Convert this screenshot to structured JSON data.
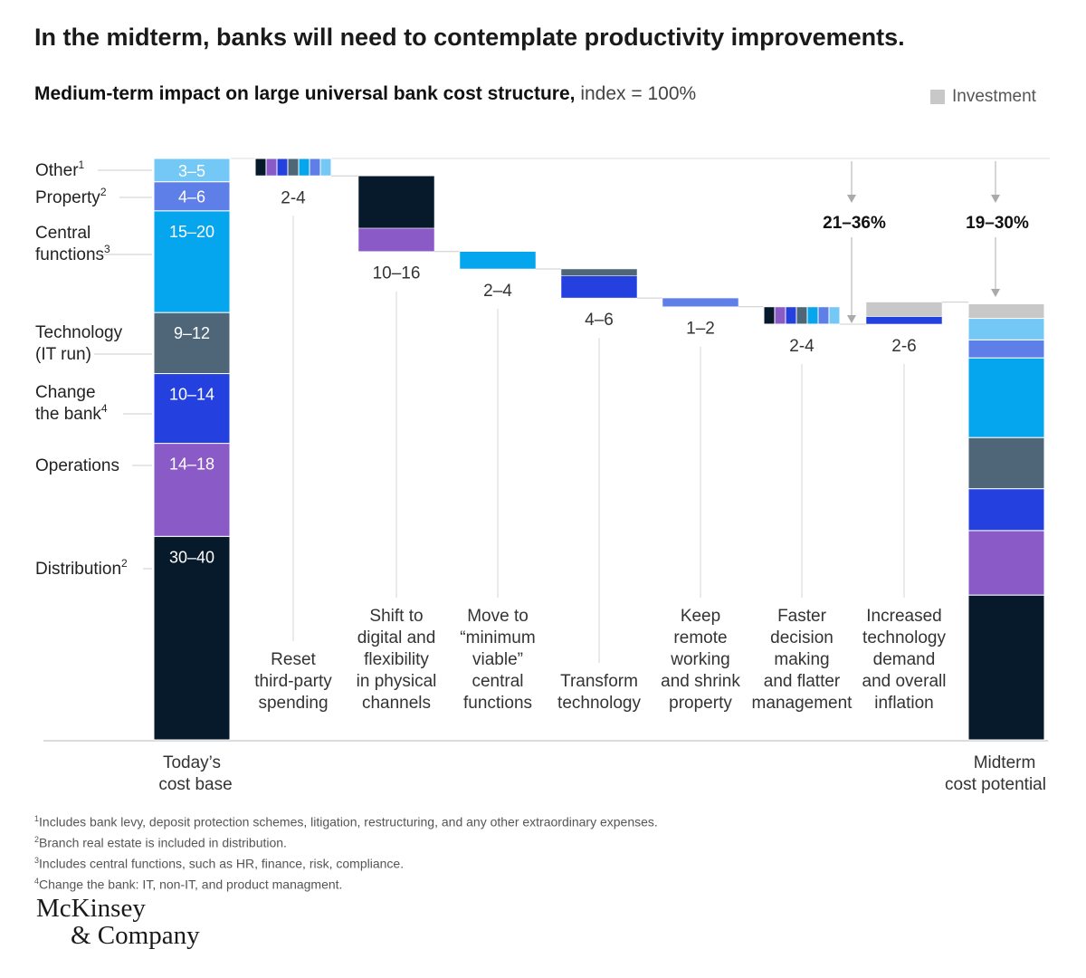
{
  "header": {
    "title": "In the midterm, banks will need to contemplate productivity improvements.",
    "subtitle_bold": "Medium-term impact on large universal bank cost structure,",
    "subtitle_rest": " index = 100%"
  },
  "legend": {
    "investment_label": "Investment",
    "investment_color": "#c8c8c8"
  },
  "chart_data": {
    "type": "bar",
    "title": "In the midterm, banks will need to contemplate productivity improvements.",
    "subtitle": "Medium-term impact on large universal bank cost structure, index = 100%",
    "ylim": [
      0,
      100
    ],
    "colors": {
      "Other": "#73c8f5",
      "Property": "#5f7fe8",
      "Central functions": "#05a6ee",
      "Technology (IT run)": "#4e6677",
      "Change the bank": "#2441e0",
      "Operations": "#8a5bc6",
      "Distribution": "#061a2b",
      "Investment": "#c8c8c8"
    },
    "today": {
      "label": "Today’s cost base",
      "segments": [
        {
          "name": "Distribution",
          "label": "Distribution",
          "sup": "2",
          "range": "30–40",
          "value": 35
        },
        {
          "name": "Operations",
          "label": "Operations",
          "sup": "",
          "range": "14–18",
          "value": 16
        },
        {
          "name": "Change the bank",
          "label": "Change the bank",
          "sup": "4",
          "range": "10–14",
          "value": 12
        },
        {
          "name": "Technology (IT run)",
          "label": "Technology (IT run)",
          "sup": "",
          "range": "9–12",
          "value": 10.5
        },
        {
          "name": "Central functions",
          "label": "Central functions",
          "sup": "3",
          "range": "15–20",
          "value": 17.5
        },
        {
          "name": "Property",
          "label": "Property",
          "sup": "2",
          "range": "4–6",
          "value": 5
        },
        {
          "name": "Other",
          "label": "Other",
          "sup": "1",
          "range": "3–5",
          "value": 4
        }
      ]
    },
    "steps": [
      {
        "label": "Reset third-party spending",
        "range": "2-4",
        "value": 3,
        "segments": [
          "Distribution",
          "Operations",
          "Change the bank",
          "Technology (IT run)",
          "Central functions",
          "Property",
          "Other"
        ],
        "split": "horizontal"
      },
      {
        "label": "Shift to digital and flexibility in physical channels",
        "range": "10–16",
        "value": 13,
        "segments": [
          {
            "name": "Distribution",
            "value": 9
          },
          {
            "name": "Operations",
            "value": 4
          }
        ],
        "split": "vertical"
      },
      {
        "label": "Move to “minimum viable” central functions",
        "range": "2–4",
        "value": 3,
        "segments": [
          {
            "name": "Central functions",
            "value": 3
          }
        ],
        "split": "vertical"
      },
      {
        "label": "Transform technology",
        "range": "4–6",
        "value": 5,
        "segments": [
          {
            "name": "Technology (IT run)",
            "value": 1.2
          },
          {
            "name": "Change the bank",
            "value": 3.8
          }
        ],
        "split": "vertical"
      },
      {
        "label": "Keep remote working and shrink property",
        "range": "1–2",
        "value": 1.5,
        "segments": [
          {
            "name": "Property",
            "value": 1.5
          }
        ],
        "split": "vertical"
      },
      {
        "label": "Faster decision making and flatter management",
        "range": "2-4",
        "value": 3,
        "segments": [
          "Distribution",
          "Operations",
          "Change the bank",
          "Technology (IT run)",
          "Central functions",
          "Property",
          "Other"
        ],
        "split": "horizontal"
      },
      {
        "label": "Increased technology demand and overall inflation",
        "range": "2-6",
        "value": 3.8,
        "segments": [
          {
            "name": "Investment",
            "value": 2.5
          },
          {
            "name": "Change the bank",
            "value": 1.3
          }
        ],
        "split": "vertical",
        "direction": "increase"
      }
    ],
    "total_reduction": "21–36%",
    "total_midterm": "19–30%",
    "midterm": {
      "label": "Midterm cost potential",
      "segments": [
        {
          "name": "Distribution",
          "value": 24.9
        },
        {
          "name": "Operations",
          "value": 11.1
        },
        {
          "name": "Change the bank",
          "value": 7.2
        },
        {
          "name": "Technology (IT run)",
          "value": 8.8
        },
        {
          "name": "Central functions",
          "value": 13.7
        },
        {
          "name": "Property",
          "value": 3.1
        },
        {
          "name": "Other",
          "value": 3.7
        },
        {
          "name": "Investment",
          "value": 2.5
        }
      ]
    }
  },
  "footnotes": [
    {
      "sup": "1",
      "text": "Includes bank levy, deposit protection schemes, litigation, restructuring, and any other extraordinary expenses."
    },
    {
      "sup": "2",
      "text": "Branch real estate is included in distribution."
    },
    {
      "sup": "3",
      "text": "Includes central functions, such as HR, finance, risk, compliance."
    },
    {
      "sup": "4",
      "text": "Change the bank: IT, non-IT, and product managment."
    }
  ],
  "logo": {
    "line1": "McKinsey",
    "line2": "& Company"
  }
}
